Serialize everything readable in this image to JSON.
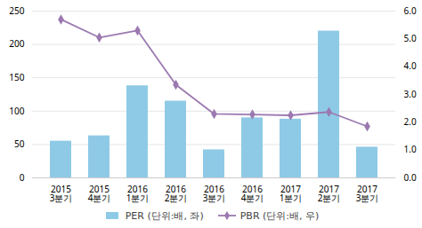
{
  "chart_data": {
    "type": "bar",
    "categories": [
      "2015\n3분기",
      "2015\n4분기",
      "2016\n1분기",
      "2016\n2분기",
      "2016\n3분기",
      "2016\n4분기",
      "2017\n1분기",
      "2017\n2분기",
      "2017\n3분기"
    ],
    "series": [
      {
        "name": "PER (단위:배, 좌)",
        "type": "bar",
        "color": "#8ecae6",
        "values": [
          55,
          63,
          138,
          115,
          42,
          90,
          88,
          220,
          46
        ]
      },
      {
        "name": "PBR (단위:배, 우)",
        "type": "line",
        "axis": "y2",
        "color": "#9b79b0",
        "marker": "diamond",
        "values": [
          5.7,
          5.05,
          5.3,
          3.35,
          2.3,
          2.28,
          2.25,
          2.37,
          1.85
        ]
      }
    ],
    "ylim": [
      0,
      250
    ],
    "yticks": [
      0,
      50,
      100,
      150,
      200,
      250
    ],
    "y2lim": [
      0,
      6
    ],
    "y2ticks": [
      0,
      1,
      2,
      3,
      4,
      5,
      6
    ],
    "grid": true,
    "legend": "bottom"
  }
}
